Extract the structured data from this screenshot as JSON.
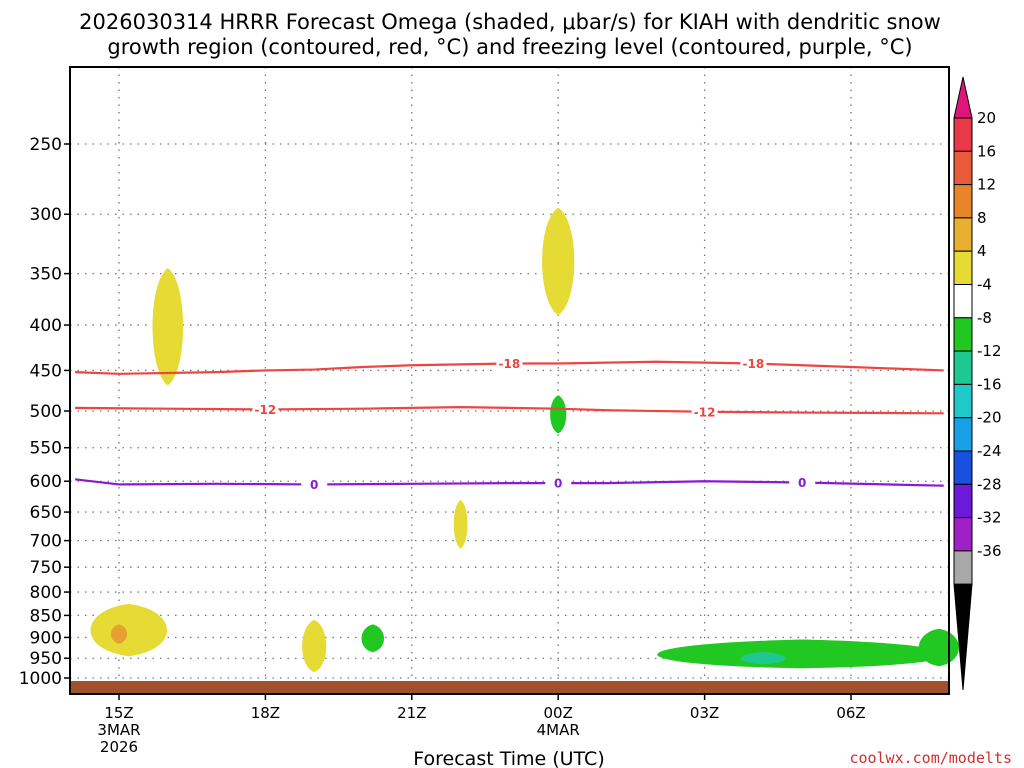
{
  "chart_data": {
    "type": "time-height",
    "title_line1": "2026030314 HRRR Forecast Omega (shaded, μbar/s) for KIAH with dendritic snow",
    "title_line2": "growth region (contoured, red, °C) and freezing level (contoured, purple, °C)",
    "xlabel": "Forecast Time (UTC)",
    "credit": "coolwx.com/modelts",
    "x_range_hours": [
      -0.9,
      16.9
    ],
    "y_log_range_mb": [
      1030,
      210
    ],
    "y_ticks": [
      {
        "value": 250,
        "label": "250"
      },
      {
        "value": 300,
        "label": "300"
      },
      {
        "value": 350,
        "label": "350"
      },
      {
        "value": 400,
        "label": "400"
      },
      {
        "value": 450,
        "label": "450"
      },
      {
        "value": 500,
        "label": "500"
      },
      {
        "value": 550,
        "label": "550"
      },
      {
        "value": 600,
        "label": "600"
      },
      {
        "value": 650,
        "label": "650"
      },
      {
        "value": 700,
        "label": "700"
      },
      {
        "value": 750,
        "label": "750"
      },
      {
        "value": 800,
        "label": "800"
      },
      {
        "value": 850,
        "label": "850"
      },
      {
        "value": 900,
        "label": "900"
      },
      {
        "value": 950,
        "label": "950"
      },
      {
        "value": 1000,
        "label": "1000"
      }
    ],
    "x_ticks": [
      {
        "hour": 0,
        "lines": [
          "15Z",
          "3MAR",
          "2026"
        ]
      },
      {
        "hour": 3,
        "lines": [
          "18Z"
        ]
      },
      {
        "hour": 6,
        "lines": [
          "21Z"
        ]
      },
      {
        "hour": 9,
        "lines": [
          "00Z",
          "4MAR"
        ]
      },
      {
        "hour": 12,
        "lines": [
          "03Z"
        ]
      },
      {
        "hour": 15,
        "lines": [
          "06Z"
        ]
      }
    ],
    "colorbar": {
      "labels": [
        "20",
        "16",
        "12",
        "8",
        "4",
        "-4",
        "-8",
        "-12",
        "-16",
        "-20",
        "-24",
        "-28",
        "-32",
        "-36"
      ],
      "bands": [
        "#e8384a",
        "#e85a3a",
        "#e8842a",
        "#e8b030",
        "#e6da34",
        "#ffffff",
        "#22c822",
        "#1ec890",
        "#20c8c8",
        "#1aa0e8",
        "#1a50e0",
        "#6a1ad8",
        "#a020c8",
        "#a8a8a8"
      ],
      "top_arrow_color": "#e0157a",
      "bottom_arrow_color": "#000000"
    },
    "contours": [
      {
        "name": "dgz-minus-18",
        "color": "#ee4444",
        "label": "-18",
        "label_hours": [
          8,
          13
        ],
        "points": [
          [
            -0.9,
            452
          ],
          [
            0,
            454
          ],
          [
            2,
            452
          ],
          [
            3,
            450
          ],
          [
            4,
            449
          ],
          [
            5,
            446
          ],
          [
            6,
            444
          ],
          [
            7,
            443
          ],
          [
            8,
            442
          ],
          [
            9,
            442
          ],
          [
            10,
            441
          ],
          [
            11,
            440
          ],
          [
            12,
            441
          ],
          [
            13,
            442
          ],
          [
            14,
            444
          ],
          [
            15,
            446
          ],
          [
            16.9,
            450
          ]
        ]
      },
      {
        "name": "dgz-minus-12",
        "color": "#ee4444",
        "label": "-12",
        "label_hours": [
          3,
          12
        ],
        "points": [
          [
            -0.9,
            496
          ],
          [
            1,
            497
          ],
          [
            3,
            498
          ],
          [
            5,
            497
          ],
          [
            7,
            495
          ],
          [
            9,
            497
          ],
          [
            10,
            499
          ],
          [
            12,
            501
          ],
          [
            14,
            502
          ],
          [
            16.9,
            503
          ]
        ]
      },
      {
        "name": "freezing-level-0",
        "color": "#8a1ad0",
        "label": "0",
        "label_hours": [
          4,
          9,
          14
        ],
        "points": [
          [
            -0.9,
            597
          ],
          [
            0,
            605
          ],
          [
            2,
            604
          ],
          [
            4,
            605
          ],
          [
            6,
            604
          ],
          [
            8,
            603
          ],
          [
            10,
            603
          ],
          [
            12,
            600
          ],
          [
            14,
            602
          ],
          [
            16.9,
            607
          ]
        ]
      }
    ],
    "omega_regions": [
      {
        "name": "omega-up-4-1600z-400mb",
        "color": "#e6da34",
        "center": [
          1.0,
          400
        ],
        "rx": 0.38,
        "p_top": 345,
        "p_bot": 468
      },
      {
        "name": "omega-up-4-0000z-340mb",
        "color": "#e6da34",
        "center": [
          9.0,
          338
        ],
        "rx": 0.4,
        "p_top": 295,
        "p_bot": 390
      },
      {
        "name": "omega-up-4-2200z-670mb",
        "color": "#e6da34",
        "center": [
          7.0,
          668
        ],
        "rx": 0.17,
        "p_top": 630,
        "p_bot": 715
      },
      {
        "name": "omega-up-4-1500z-880mb",
        "color": "#e6da34",
        "center": [
          0.2,
          885
        ],
        "rx": 0.95,
        "p_top": 825,
        "p_bot": 945
      },
      {
        "name": "omega-up-8-1500z-890mb",
        "color": "#e8a030",
        "center": [
          0.0,
          892
        ],
        "rx": 0.2,
        "p_top": 870,
        "p_bot": 915
      },
      {
        "name": "omega-up-4-1900z-920mb",
        "color": "#e6da34",
        "center": [
          4.0,
          925
        ],
        "rx": 0.3,
        "p_top": 860,
        "p_bot": 985
      },
      {
        "name": "omega-down-4-0000z-510mb",
        "color": "#22c822",
        "center": [
          9.0,
          505
        ],
        "rx": 0.2,
        "p_top": 480,
        "p_bot": 530
      },
      {
        "name": "omega-down-4-2000z-900mb",
        "color": "#22c822",
        "center": [
          5.2,
          905
        ],
        "rx": 0.28,
        "p_top": 870,
        "p_bot": 935
      },
      {
        "name": "omega-down-4-0500z-950mb",
        "color": "#22c822",
        "center": [
          14.0,
          948
        ],
        "rx": 3.6,
        "p_top": 905,
        "p_bot": 975
      },
      {
        "name": "omega-down-8-0400z-950mb",
        "color": "#1ec890",
        "center": [
          13.2,
          950
        ],
        "rx": 0.55,
        "p_top": 935,
        "p_bot": 965
      },
      {
        "name": "omega-down-4-0800z-920mb",
        "color": "#22c822",
        "center": [
          16.8,
          925
        ],
        "rx": 0.5,
        "p_top": 880,
        "p_bot": 970
      }
    ],
    "ground_color": "#a0522d"
  }
}
